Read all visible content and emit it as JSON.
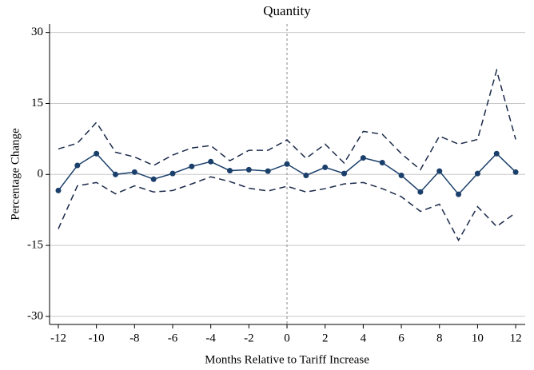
{
  "chart_data": {
    "type": "line",
    "title": "Quantity",
    "x_label": "Months Relative to Tariff Increase",
    "y_label": "Percentage Change",
    "x": [
      -12,
      -11,
      -10,
      -9,
      -8,
      -7,
      -6,
      -5,
      -4,
      -3,
      -2,
      -1,
      0,
      1,
      2,
      3,
      4,
      5,
      6,
      7,
      8,
      9,
      10,
      11,
      12
    ],
    "series": [
      {
        "color": "#1b3f6b",
        "style": "solid",
        "markers": true,
        "values": [
          -3.4,
          1.9,
          4.4,
          0,
          0.5,
          -1.0,
          0.2,
          1.7,
          2.7,
          0.8,
          1.0,
          0.7,
          2.2,
          -0.2,
          1.5,
          0.2,
          3.5,
          2.5,
          -0.2,
          -3.7,
          0.7,
          -4.2,
          0.2,
          4.4,
          0.5
        ]
      },
      {
        "color": "#1b2a4a",
        "style": "dashed",
        "markers": false,
        "values": [
          5.4,
          6.6,
          11,
          4.7,
          3.7,
          1.9,
          4.1,
          5.6,
          6.1,
          2.9,
          5.1,
          5.1,
          7.3,
          3.4,
          6.4,
          2.4,
          9.1,
          8.5,
          4.4,
          1.0,
          8.1,
          6.4,
          7.4,
          22,
          7.4
        ]
      },
      {
        "color": "#1b2a4a",
        "style": "dashed",
        "markers": false,
        "values": [
          -11.5,
          -2.4,
          -1.7,
          -4.1,
          -2.4,
          -3.7,
          -3.4,
          -2.0,
          -0.5,
          -1.5,
          -2.9,
          -3.5,
          -2.5,
          -3.7,
          -3.0,
          -2.0,
          -1.7,
          -3.0,
          -4.7,
          -7.8,
          -6.3,
          -13.9,
          -6.8,
          -11,
          -8.1
        ]
      }
    ],
    "xlim": [
      -12.46,
      12.5
    ],
    "ylim": [
      -31.7,
      31.8
    ],
    "xticks": [
      -12,
      -10,
      -8,
      -6,
      -4,
      -2,
      0,
      2,
      4,
      6,
      8,
      10,
      12
    ],
    "yticks": [
      -30,
      -15,
      0,
      15,
      30
    ],
    "grid": true,
    "reference_x": 0
  }
}
